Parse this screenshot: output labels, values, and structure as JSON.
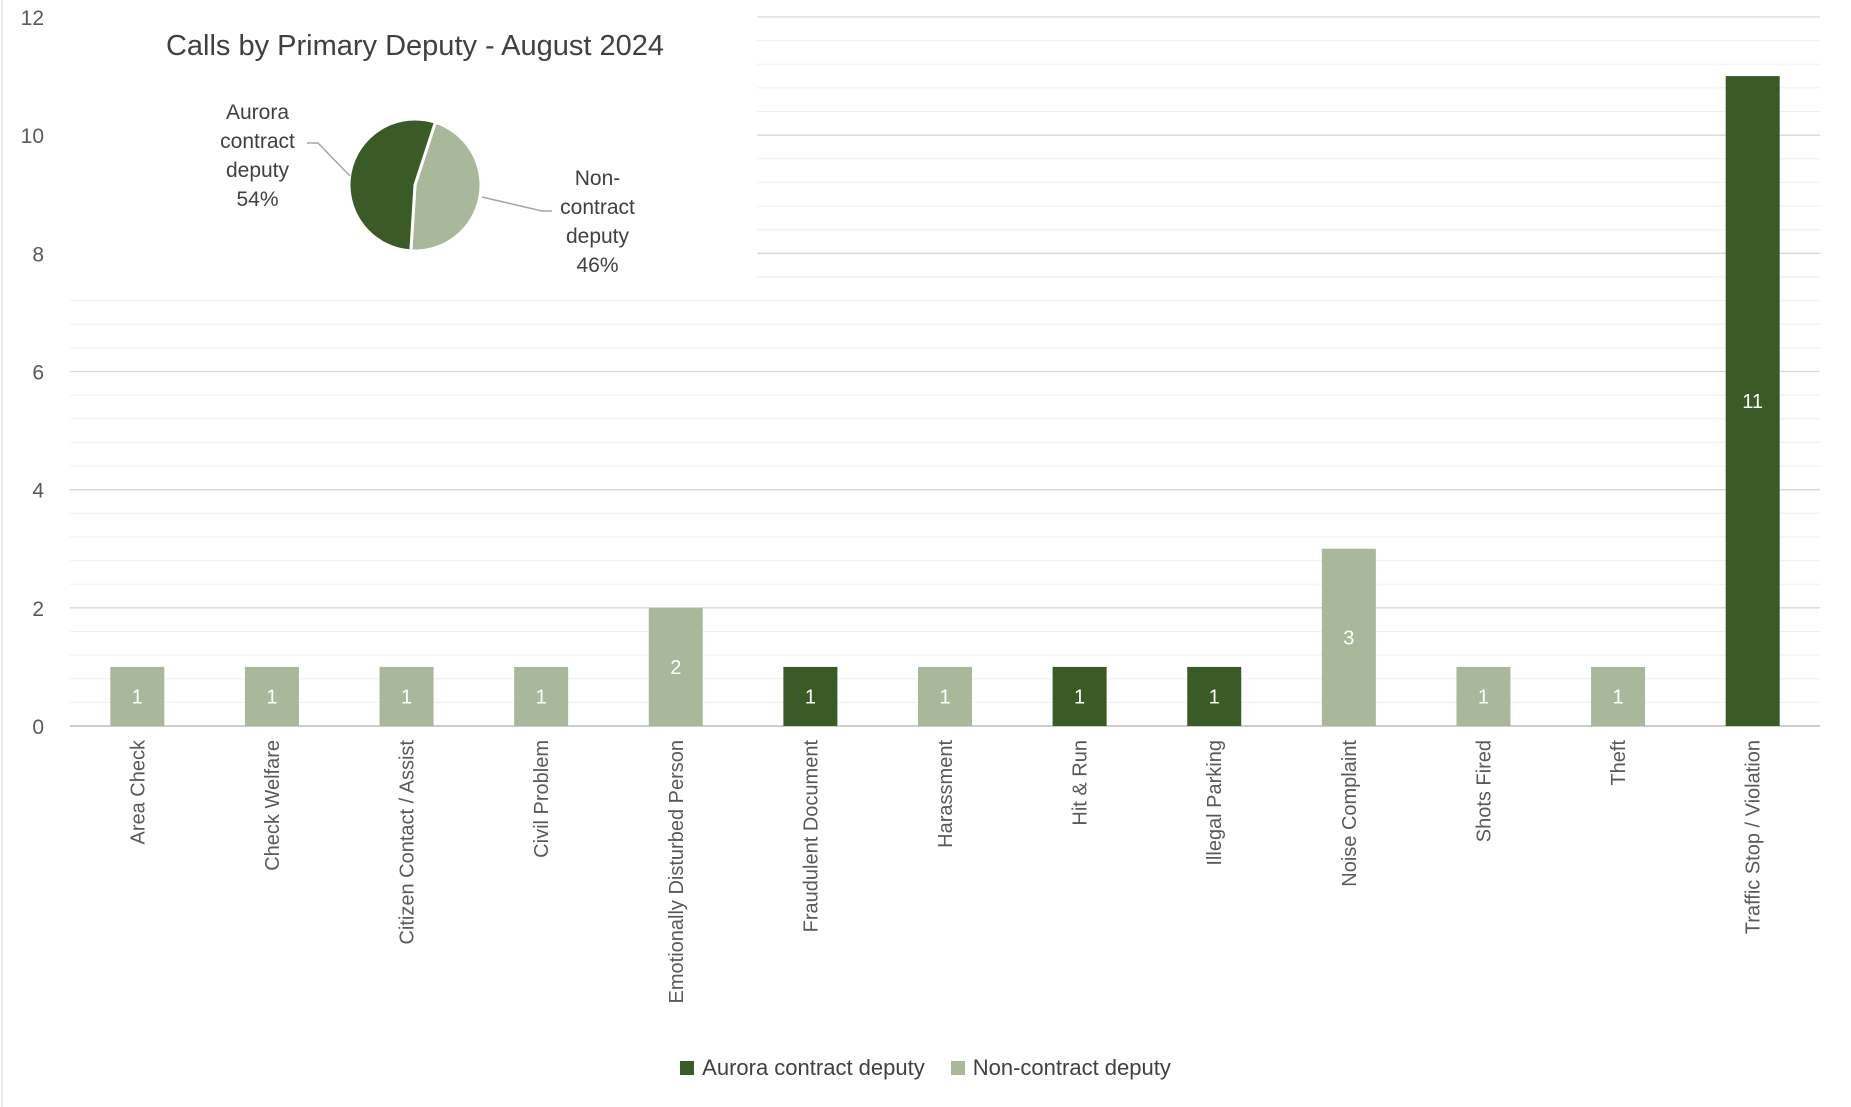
{
  "colors": {
    "aurora": "#3a5a26",
    "noncontract": "#a9b89a",
    "gridline": "#d9d9d9",
    "minor_gridline": "#efefef",
    "label_text": "#ffffff"
  },
  "chart_data": [
    {
      "type": "bar",
      "title": "",
      "xlabel": "",
      "ylabel": "",
      "ylim": [
        0,
        12
      ],
      "yticks": [
        0,
        2,
        4,
        6,
        8,
        10,
        12
      ],
      "grid": true,
      "legend_placement": "bottom-center",
      "categories": [
        "Area Check",
        "Check Welfare",
        "Citizen Contact / Assist",
        "Civil Problem",
        "Emotionally Disturbed Person",
        "Fraudulent Document",
        "Harassment",
        "Hit & Run",
        "Illegal Parking",
        "Noise Complaint",
        "Shots Fired",
        "Theft",
        "Traffic Stop / Violation"
      ],
      "series": [
        {
          "name": "Aurora contract deputy",
          "values": [
            0,
            0,
            0,
            0,
            0,
            1,
            0,
            1,
            1,
            0,
            0,
            0,
            11
          ]
        },
        {
          "name": "Non-contract deputy",
          "values": [
            1,
            1,
            1,
            1,
            2,
            0,
            1,
            0,
            0,
            3,
            1,
            1,
            0
          ]
        }
      ]
    },
    {
      "type": "pie",
      "title": "Calls by Primary Deputy - August 2024",
      "slices": [
        {
          "name": "Aurora contract deputy",
          "value": 54
        },
        {
          "name": "Non-contract deputy",
          "value": 46
        }
      ],
      "labels": [
        {
          "lines": [
            "Aurora",
            "contract",
            "deputy",
            "54%"
          ]
        },
        {
          "lines": [
            "Non-",
            "contract",
            "deputy",
            "46%"
          ]
        }
      ]
    }
  ]
}
